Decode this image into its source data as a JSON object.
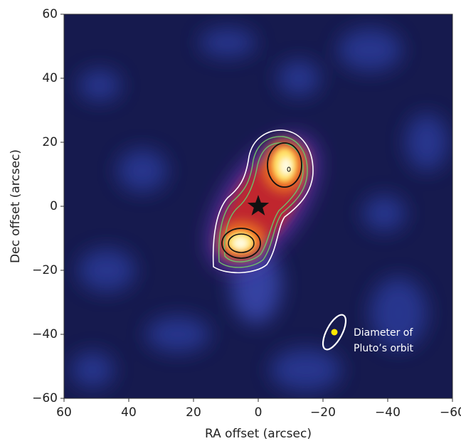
{
  "chart_data": {
    "type": "image",
    "xlabel": "RA offset (arcsec)",
    "ylabel": "Dec offset (arcsec)",
    "xlim": [
      60,
      -60
    ],
    "ylim": [
      -60,
      60
    ],
    "xticks": [
      60,
      40,
      20,
      0,
      {
        "value": -20,
        "label": "−20"
      },
      {
        "value": -40,
        "label": "−40"
      },
      {
        "value": -60,
        "label": "−60"
      }
    ],
    "yticks": [
      {
        "value": -60,
        "label": "−60"
      },
      {
        "value": -40,
        "label": "−40"
      },
      {
        "value": -20,
        "label": "−20"
      },
      0,
      20,
      40,
      60
    ],
    "star": {
      "x": 0,
      "y": 0
    },
    "annotation": [
      "Diameter of",
      "Pluto’s orbit"
    ]
  }
}
